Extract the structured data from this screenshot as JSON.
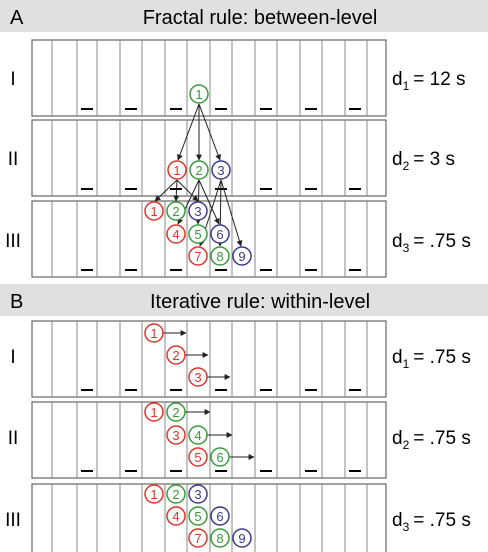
{
  "panels": [
    {
      "letter": "A",
      "title": "Fractal rule: between-level",
      "rows": [
        {
          "roman": "I",
          "d_sub": "1",
          "d_value": "= 12 s"
        },
        {
          "roman": "II",
          "d_sub": "2",
          "d_value": "= 3 s"
        },
        {
          "roman": "III",
          "d_sub": "3",
          "d_value": "= .75 s"
        }
      ]
    },
    {
      "letter": "B",
      "title": "Iterative rule: within-level",
      "rows": [
        {
          "roman": "I",
          "d_sub": "1",
          "d_value": "= .75 s"
        },
        {
          "roman": "II",
          "d_sub": "2",
          "d_value": "= .75 s"
        },
        {
          "roman": "III",
          "d_sub": "3",
          "d_value": "= .75 s"
        }
      ]
    }
  ],
  "d_letter": "d",
  "colors": {
    "red": "#e0342b",
    "green": "#3a9a3a",
    "blue": "#3b3a8f",
    "header_bg": "#e0e0e0",
    "line": "#666666",
    "arrow": "#222222"
  }
}
